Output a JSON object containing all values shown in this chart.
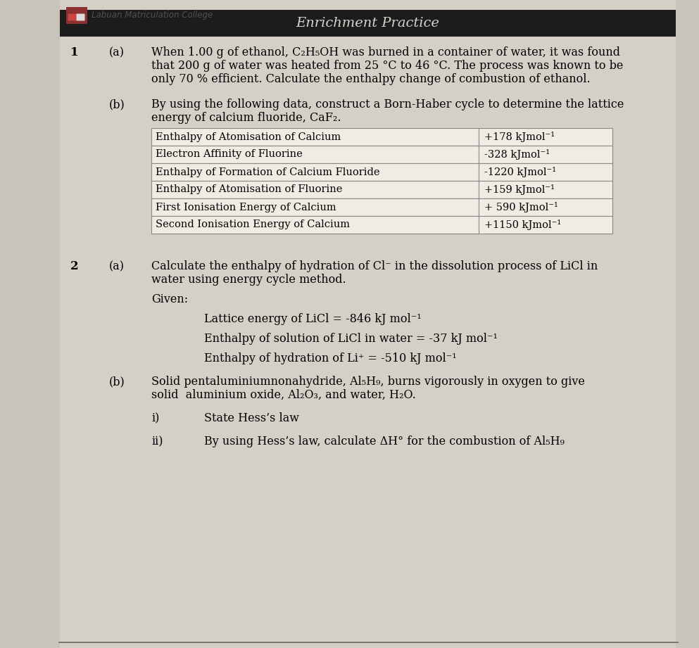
{
  "header_text": "Labuan Matriculation College",
  "title_text": "Enrichment Practice",
  "title_bg": "#1c1c1c",
  "title_fg": "#d8d4cc",
  "bg_color": "#c8c4bc",
  "page_bg": "#d4d0c8",
  "border_color": "#555555",
  "q1_label": "1",
  "q1a_label": "(a)",
  "q1a_text1": "When 1.00 g of ethanol, C₂H₅OH was burned in a container of water, it was found",
  "q1a_text2": "that 200 g of water was heated from 25 °C to 46 °C. The process was known to be",
  "q1a_text3": "only 70 % efficient. Calculate the enthalpy change of combustion of ethanol.",
  "q1b_label": "(b)",
  "q1b_text1": "By using the following data, construct a Born-Haber cycle to determine the lattice",
  "q1b_text2": "energy of calcium fluoride, CaF₂.",
  "table_rows": [
    [
      "Enthalpy of Atomisation of Calcium",
      "+178 kJmol⁻¹"
    ],
    [
      "Electron Affinity of Fluorine",
      "-328 kJmol⁻¹"
    ],
    [
      "Enthalpy of Formation of Calcium Fluoride",
      "-1220 kJmol⁻¹"
    ],
    [
      "Enthalpy of Atomisation of Fluorine",
      "+159 kJmol⁻¹"
    ],
    [
      "First Ionisation Energy of Calcium",
      "+ 590 kJmol⁻¹"
    ],
    [
      "Second Ionisation Energy of Calcium",
      "+1150 kJmol⁻¹"
    ]
  ],
  "q2_label": "2",
  "q2a_label": "(a)",
  "q2a_text1": "Calculate the enthalpy of hydration of Cl⁻ in the dissolution process of LiCl in",
  "q2a_text2": "water using energy cycle method.",
  "given_label": "Given:",
  "given1": "Lattice energy of LiCl = -846 kJ mol⁻¹",
  "given2": "Enthalpy of solution of LiCl in water = -37 kJ mol⁻¹",
  "given3": "Enthalpy of hydration of Li⁺ = -510 kJ mol⁻¹",
  "q2b_label": "(b)",
  "q2b_text1": "Solid pentaluminiumnonahydride, Al₅H₉, burns vigorously in oxygen to give",
  "q2b_text2": "solid  aluminium oxide, Al₂O₃, and water, H₂O.",
  "qi_label": "i)",
  "qi_text": "State Hess’s law",
  "qii_label": "ii)",
  "qii_text": "By using Hess’s law, calculate ΔH° for the combustion of Al₅H₉"
}
